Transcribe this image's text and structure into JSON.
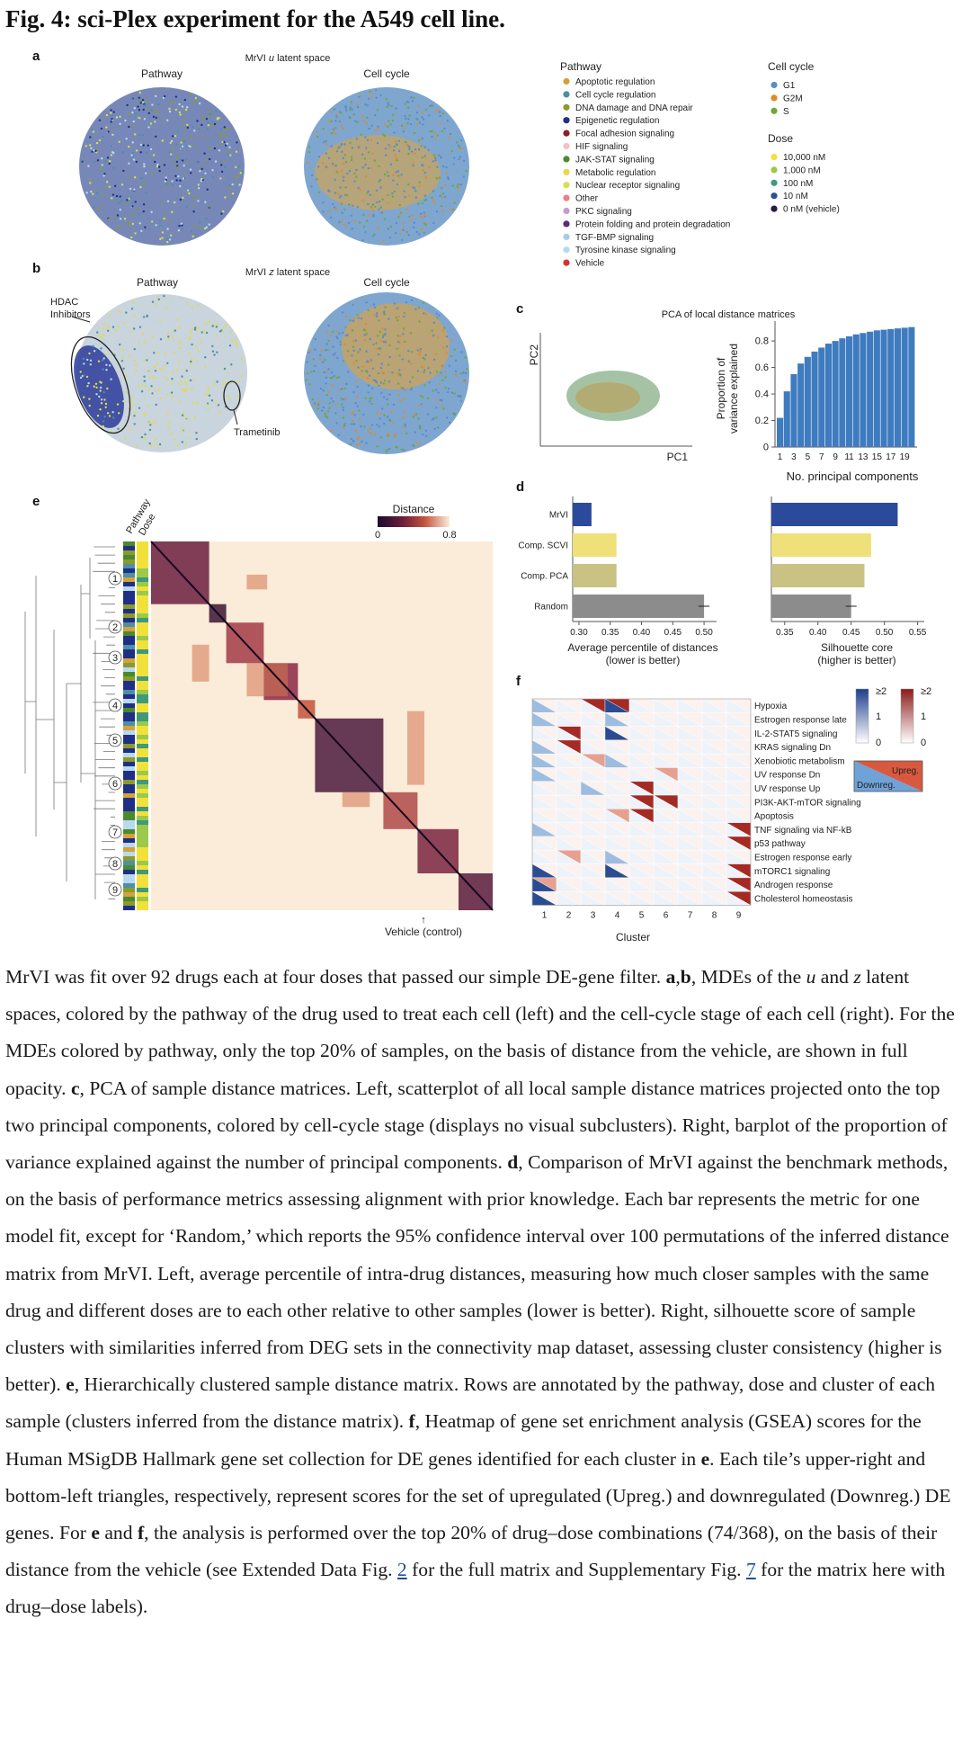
{
  "figure_title": "Fig. 4: sci-Plex experiment for the A549 cell line.",
  "panel_a": {
    "label": "a",
    "title": "MrVI u latent space",
    "left": "Pathway",
    "right": "Cell cycle"
  },
  "panel_b": {
    "label": "b",
    "title": "MrVI z latent space",
    "left": "Pathway",
    "right": "Cell cycle",
    "annot_hdac_1": "HDAC",
    "annot_hdac_2": "Inhibitors",
    "annot_tram": "Trametinib"
  },
  "legend": {
    "pathway_title": "Pathway",
    "pathways": [
      {
        "label": "Apoptotic regulation",
        "color": "#d4a23a"
      },
      {
        "label": "Cell cycle regulation",
        "color": "#4d8fa6"
      },
      {
        "label": "DNA damage and DNA repair",
        "color": "#8a9b2a"
      },
      {
        "label": "Epigenetic regulation",
        "color": "#1f2f86"
      },
      {
        "label": "Focal adhesion signaling",
        "color": "#8b1f1f"
      },
      {
        "label": "HIF signaling",
        "color": "#f2c1c4"
      },
      {
        "label": "JAK-STAT signaling",
        "color": "#4a8a2c"
      },
      {
        "label": "Metabolic regulation",
        "color": "#e8d84a"
      },
      {
        "label": "Nuclear receptor signaling",
        "color": "#d6e04f"
      },
      {
        "label": "Other",
        "color": "#ea7f86"
      },
      {
        "label": "PKC signaling",
        "color": "#c49bd3"
      },
      {
        "label": "Protein folding and protein degradation",
        "color": "#5b2c7a"
      },
      {
        "label": "TGF-BMP signaling",
        "color": "#a6cbe8"
      },
      {
        "label": "Tyrosine kinase signaling",
        "color": "#b8d9ef"
      },
      {
        "label": "Vehicle",
        "color": "#d3322f"
      }
    ],
    "cellcycle_title": "Cell cycle",
    "cellcycle": [
      {
        "label": "G1",
        "color": "#5b8cc7"
      },
      {
        "label": "G2M",
        "color": "#e08a2c"
      },
      {
        "label": "S",
        "color": "#6fa83a"
      }
    ],
    "dose_title": "Dose",
    "doses": [
      {
        "label": "10,000 nM",
        "color": "#f2e13a"
      },
      {
        "label": "1,000 nM",
        "color": "#9cc94a"
      },
      {
        "label": "100 nM",
        "color": "#3f9a7a"
      },
      {
        "label": "10 nM",
        "color": "#2e4f8f"
      },
      {
        "label": "0 nM (vehicle)",
        "color": "#2a1a3f"
      }
    ]
  },
  "panel_c": {
    "label": "c",
    "title": "PCA of local distance matrices",
    "pc1": "PC1",
    "pc2": "PC2",
    "ylabel_1": "Proportion of",
    "ylabel_2": "variance explained",
    "xlabel": "No. principal components"
  },
  "panel_d": {
    "label": "d",
    "left_xlabel_1": "Average percentile of distances",
    "left_xlabel_2": "(lower is better)",
    "right_xlabel_1": "Silhouette core",
    "right_xlabel_2": "(higher is better)"
  },
  "panel_e": {
    "label": "e",
    "colbar_title": "Distance",
    "cb_min": "0",
    "cb_max": "0.8",
    "ann_pathway": "Pathway",
    "ann_dose": "Dose",
    "vehicle": "Vehicle (control)",
    "clusters": [
      "1",
      "2",
      "3",
      "4",
      "5",
      "6",
      "7",
      "8",
      "9"
    ]
  },
  "panel_f": {
    "label": "f",
    "xlabel": "Cluster",
    "upreg": "Upreg.",
    "downreg": "Downreg.",
    "cb_top": "≥2",
    "cb_mid": "1",
    "cb_bot": "0",
    "gene_sets": [
      "Hypoxia",
      "Estrogen response late",
      "IL-2-STAT5 signaling",
      "KRAS signaling Dn",
      "Xenobiotic metabolism",
      "UV response Dn",
      "UV response Up",
      "PI3K-AKT-mTOR signaling",
      "Apoptosis",
      "TNF signaling via NF-kB",
      "p53 pathway",
      "Estrogen response early",
      "mTORC1 signaling",
      "Androgen response",
      "Cholesterol homeostasis"
    ],
    "clusters": [
      "1",
      "2",
      "3",
      "4",
      "5",
      "6",
      "7",
      "8",
      "9"
    ]
  },
  "chart_data": [
    {
      "type": "bar",
      "id": "c-variance",
      "title": "PCA of local distance matrices",
      "xlabel": "No. principal components",
      "ylabel": "Proportion of variance explained",
      "categories": [
        1,
        2,
        3,
        4,
        5,
        6,
        7,
        8,
        9,
        10,
        11,
        12,
        13,
        14,
        15,
        16,
        17,
        18,
        19,
        20
      ],
      "values": [
        0.22,
        0.42,
        0.55,
        0.63,
        0.68,
        0.72,
        0.75,
        0.78,
        0.8,
        0.82,
        0.835,
        0.85,
        0.86,
        0.87,
        0.88,
        0.885,
        0.89,
        0.895,
        0.9,
        0.905
      ],
      "xticks": [
        "1",
        "3",
        "5",
        "7",
        "9",
        "11",
        "13",
        "15",
        "17",
        "19"
      ],
      "yticks": [
        "0",
        "0.2",
        "0.4",
        "0.6",
        "0.8"
      ],
      "ylim": [
        0,
        0.95
      ]
    },
    {
      "type": "bar",
      "id": "d-left",
      "orientation": "horizontal",
      "xlabel": "Average percentile of distances (lower is better)",
      "categories": [
        "MrVI",
        "Comp. SCVI",
        "Comp. PCA",
        "Random"
      ],
      "values": [
        0.32,
        0.36,
        0.36,
        0.5
      ],
      "colors": [
        "#2b4a9c",
        "#efe07a",
        "#c9c283",
        "#8c8c8c"
      ],
      "xlim": [
        0.29,
        0.52
      ],
      "xticks": [
        "0.30",
        "0.35",
        "0.40",
        "0.45",
        "0.50"
      ]
    },
    {
      "type": "bar",
      "id": "d-right",
      "orientation": "horizontal",
      "xlabel": "Silhouette core (higher is better)",
      "categories": [
        "MrVI",
        "Comp. SCVI",
        "Comp. PCA",
        "Random"
      ],
      "values": [
        0.52,
        0.48,
        0.47,
        0.45
      ],
      "colors": [
        "#2b4a9c",
        "#efe07a",
        "#c9c283",
        "#8c8c8c"
      ],
      "xlim": [
        0.33,
        0.56
      ],
      "xticks": [
        "0.35",
        "0.40",
        "0.45",
        "0.50",
        "0.55"
      ]
    }
  ],
  "caption_html": "MrVI was fit over 92 drugs each at four doses that passed our simple DE-gene filter. <b>a</b>,<b>b</b>, MDEs of the <i>u</i> and <i>z</i> latent spaces, colored by the pathway of the drug used to treat each cell (left) and the cell-cycle stage of each cell (right). For the MDEs colored by pathway, only the top 20% of samples, on the basis of distance from the vehicle, are shown in full opacity. <b>c</b>, PCA of sample distance matrices. Left, scatterplot of all local sample distance matrices projected onto the top two principal components, colored by cell-cycle stage (displays no visual subclusters). Right, barplot of the proportion of variance explained against the number of principal components. <b>d</b>, Comparison of MrVI against the benchmark methods, on the basis of performance metrics assessing alignment with prior knowledge. Each bar represents the metric for one model fit, except for ‘Random,’ which reports the 95% confidence interval over 100 permutations of the inferred distance matrix from MrVI. Left, average percentile of intra-drug distances, measuring how much closer samples with the same drug and different doses are to each other relative to other samples (lower is better). Right, silhouette score of sample clusters with similarities inferred from DEG sets in the connectivity map dataset, assessing cluster consistency (higher is better). <b>e</b>, Hierarchically clustered sample distance matrix. Rows are annotated by the pathway, dose and cluster of each sample (clusters inferred from the distance matrix). <b>f</b>, Heatmap of gene set enrichment analysis (GSEA) scores for the Human MSigDB Hallmark gene set collection for DE genes identified for each cluster in <b>e</b>. Each tile’s upper-right and bottom-left triangles, respectively, represent scores for the set of upregulated (Upreg.) and downregulated (Downreg.) DE genes. For <b>e</b> and <b>f</b>, the analysis is performed over the top 20% of drug–dose combinations (74/368), on the basis of their distance from the vehicle (see Extended Data Fig. <a>2</a> for the full matrix and Supplementary Fig. <a>7</a> for the matrix here with drug–dose labels)."
}
